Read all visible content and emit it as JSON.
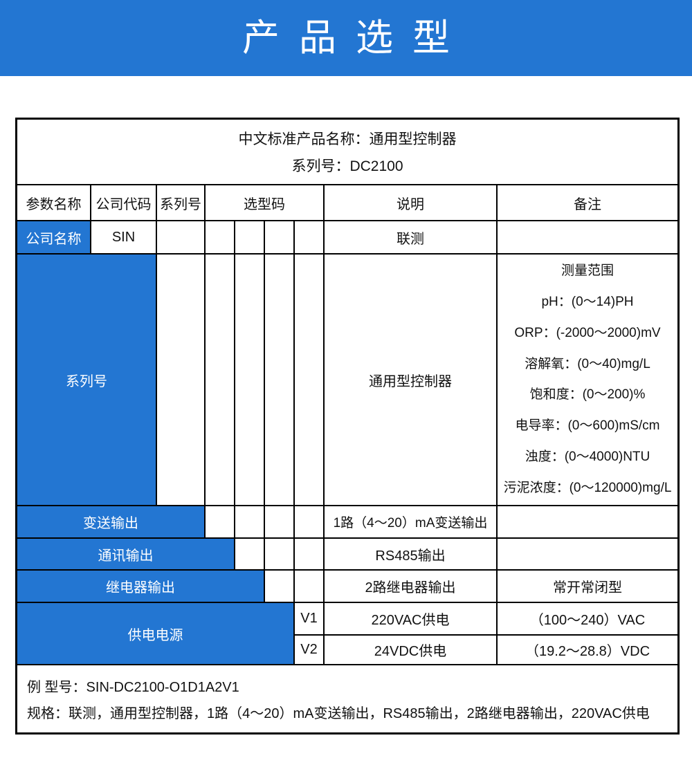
{
  "banner": {
    "title": "产品选型",
    "bg_color": "#2376d2"
  },
  "accent_color": "#2376d2",
  "table": {
    "title_line1": "中文标准产品名称：通用型控制器",
    "title_line2": "系列号：DC2100",
    "columns": {
      "param": "参数名称",
      "company_code": "公司代码",
      "series": "系列号",
      "selection_code": "选型码",
      "description": "说明",
      "remark": "备注"
    },
    "rows": {
      "company": {
        "name": "公司名称",
        "code": "SIN",
        "desc": "联测",
        "remark": ""
      },
      "series": {
        "name": "系列号",
        "desc": "通用型控制器",
        "remark_lines": [
          "测量范围",
          "pH：(0～14)PH",
          "ORP：(-2000～2000)mV",
          "溶解氧：(0～40)mg/L",
          "饱和度：(0～200)%",
          "电导率：(0～600)mS/cm",
          "浊度：(0～4000)NTU",
          "污泥浓度：(0～120000)mg/L"
        ]
      },
      "transmit_output": {
        "name": "变送输出",
        "desc": "1路（4～20）mA变送输出",
        "remark": ""
      },
      "comm_output": {
        "name": "通讯输出",
        "desc": "RS485输出",
        "remark": ""
      },
      "relay_output": {
        "name": "继电器输出",
        "desc": "2路继电器输出",
        "remark": "常开常闭型"
      },
      "power_supply": {
        "name": "供电电源",
        "options": [
          {
            "code": "V1",
            "desc": "220VAC供电",
            "remark": "（100～240）VAC"
          },
          {
            "code": "V2",
            "desc": "24VDC供电",
            "remark": "（19.2～28.8）VDC"
          }
        ]
      }
    },
    "example": {
      "model_line": "例 型号：SIN-DC2100-O1D1A2V1",
      "spec_line": "规格：联测，通用型控制器，1路（4～20）mA变送输出，RS485输出，2路继电器输出，220VAC供电"
    }
  }
}
